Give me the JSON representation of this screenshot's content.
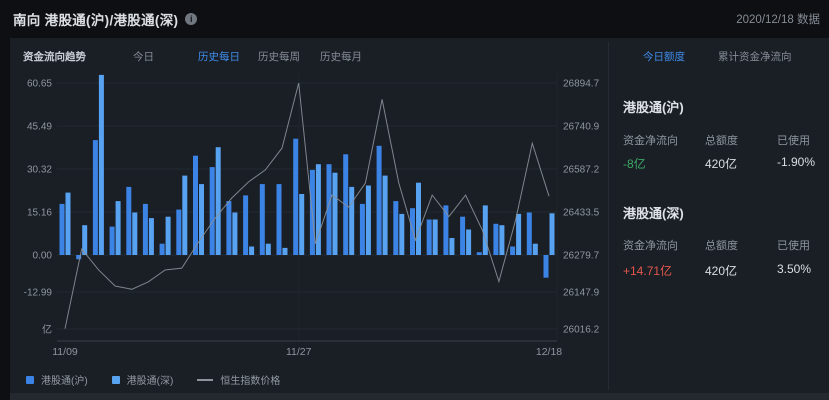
{
  "header": {
    "title": "南向 港股通(沪)/港股通(深)",
    "info_icon": "info-circle",
    "date_note": "2020/12/18 数据"
  },
  "colors": {
    "accent_blue": "#3F8BEB",
    "positive_red": "#E4574B",
    "negative_green": "#3CA866",
    "bar_sh": "#3C83E6",
    "bar_sz": "#58A2F2",
    "hsi_line": "#8A9098"
  },
  "toolbar": {
    "label": "资金流向趋势",
    "tabs": [
      {
        "label": "今日",
        "active": false
      },
      {
        "label": "历史每日",
        "active": true
      },
      {
        "label": "历史每周",
        "active": false
      },
      {
        "label": "历史每月",
        "active": false
      }
    ]
  },
  "side_panel": {
    "tabs": [
      {
        "label": "今日额度",
        "active": true
      },
      {
        "label": "累计资金净流向",
        "active": false
      }
    ],
    "sections": [
      {
        "title": "港股通(沪)",
        "columns": [
          "资金净流向",
          "总额度",
          "已使用"
        ],
        "values": [
          "-8亿",
          "420亿",
          "-1.90%"
        ],
        "value_colors": [
          "#3CA866",
          "#D9DEE4",
          "#D9DEE4"
        ]
      },
      {
        "title": "港股通(深)",
        "columns": [
          "资金净流向",
          "总额度",
          "已使用"
        ],
        "values": [
          "+14.71亿",
          "420亿",
          "3.50%"
        ],
        "value_colors": [
          "#E4574B",
          "#D9DEE4",
          "#D9DEE4"
        ]
      }
    ]
  },
  "legend": [
    {
      "label": "港股通(沪)",
      "type": "square",
      "color": "#3C83E6"
    },
    {
      "label": "港股通(深)",
      "type": "square",
      "color": "#58A2F2"
    },
    {
      "label": "恒生指数价格",
      "type": "line",
      "color": "#8E949C"
    }
  ],
  "chart_data": {
    "type": "bar+line",
    "grid": true,
    "left_axis": {
      "unit": "亿",
      "ticks": [
        60.65,
        45.49,
        30.32,
        15.16,
        0.0,
        -12.99
      ]
    },
    "right_axis": {
      "ticks": [
        26894.7,
        26740.9,
        26587.2,
        26433.5,
        26279.7,
        26147.9,
        26016.2
      ]
    },
    "x_tick_labels": [
      {
        "label": "11/09",
        "index": 0
      },
      {
        "label": "11/27",
        "index": 14
      },
      {
        "label": "12/18",
        "index": 29
      }
    ],
    "series": [
      {
        "name": "港股通(沪)",
        "type": "bar",
        "color": "#3C83E6",
        "values": [
          18,
          -1.5,
          40.5,
          10,
          24,
          18,
          4,
          16,
          35,
          31,
          19,
          21,
          25,
          25,
          41,
          30,
          32,
          35.5,
          18,
          38.5,
          19,
          16.5,
          12.5,
          17.5,
          13.5,
          1,
          11,
          3,
          15,
          -8
        ]
      },
      {
        "name": "港股通(深)",
        "type": "bar",
        "color": "#58A2F2",
        "values": [
          22,
          10.5,
          63.5,
          19,
          15,
          13,
          13.5,
          28,
          25,
          38,
          15,
          3,
          4,
          2.5,
          21.5,
          32,
          29,
          24,
          24.5,
          28,
          14.5,
          25.5,
          12.5,
          6,
          9,
          17.5,
          10.5,
          14.5,
          4,
          14.71
        ]
      },
      {
        "name": "恒生指数价格",
        "type": "line",
        "color": "#8A9098",
        "values": [
          26016.2,
          26301,
          26227,
          26169,
          26157,
          26184,
          26226,
          26233,
          26326,
          26412,
          26484,
          26541,
          26584,
          26662,
          26894.7,
          26320,
          26494,
          26451,
          26537,
          26836,
          26537,
          26333,
          26494,
          26417,
          26494,
          26369,
          26185,
          26405,
          26679,
          26490
        ]
      }
    ]
  }
}
